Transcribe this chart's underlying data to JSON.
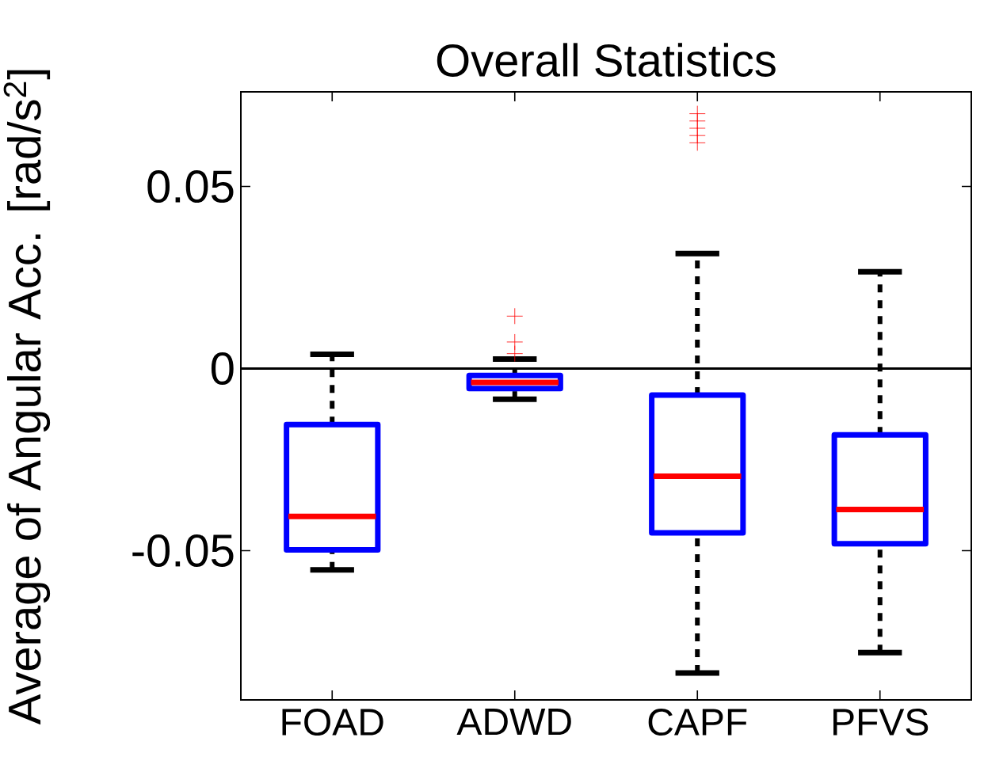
{
  "chart_data": {
    "type": "box",
    "title": "Overall Statistics",
    "ylabel": "Average of Angular Acc. [rad/s$^{2}$]",
    "categories": [
      "FOAD",
      "ADWD",
      "CAPF",
      "PFVS"
    ],
    "boxes": [
      {
        "low": -0.0553,
        "q1": -0.0498,
        "median": -0.0406,
        "q3": -0.0154,
        "high": 0.0039
      },
      {
        "low": -0.0084,
        "q1": -0.0055,
        "median": -0.0038,
        "q3": -0.0019,
        "high": 0.0026,
        "outliers": [
          0.0144,
          0.0073,
          0.0041
        ]
      },
      {
        "low": -0.0836,
        "q1": -0.0451,
        "median": -0.0296,
        "q3": -0.0073,
        "high": 0.0316,
        "outliers": [
          0.07,
          0.068,
          0.066,
          0.064,
          0.062
        ]
      },
      {
        "low": -0.078,
        "q1": -0.0481,
        "median": -0.0387,
        "q3": -0.0182,
        "high": 0.0266
      }
    ],
    "ylim": [
      -0.091,
      0.076
    ],
    "yticks": [
      -0.05,
      0,
      0.05
    ],
    "ref_lines": [
      {
        "axis": "y",
        "value": 0,
        "color": "#000000"
      }
    ]
  }
}
